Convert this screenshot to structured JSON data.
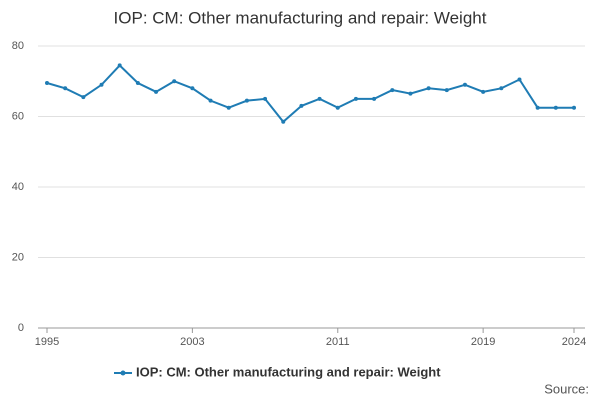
{
  "chart_data": {
    "type": "line",
    "title": "IOP: CM: Other manufacturing and repair: Weight",
    "x": [
      1995,
      1996,
      1997,
      1998,
      1999,
      2000,
      2001,
      2002,
      2003,
      2004,
      2005,
      2006,
      2007,
      2008,
      2009,
      2010,
      2011,
      2012,
      2013,
      2014,
      2015,
      2016,
      2017,
      2018,
      2019,
      2020,
      2021,
      2022,
      2023,
      2024
    ],
    "series": [
      {
        "name": "IOP: CM: Other manufacturing and repair: Weight",
        "color": "#1f7cb4",
        "values": [
          69.5,
          68,
          65.5,
          69,
          74.5,
          69.5,
          67,
          70,
          68,
          64.5,
          62.5,
          64.5,
          65,
          58.5,
          63,
          65,
          62.5,
          65,
          65,
          67.5,
          66.5,
          68,
          67.5,
          69,
          67,
          68,
          70.5,
          62.5,
          62.5,
          62.5
        ]
      }
    ],
    "xlim": [
      1995,
      2024
    ],
    "xticks": [
      1995,
      2003,
      2011,
      2019,
      2024
    ],
    "ylim": [
      0,
      80
    ],
    "yticks": [
      0,
      20,
      40,
      60,
      80
    ],
    "grid": true,
    "source": "Source:"
  }
}
